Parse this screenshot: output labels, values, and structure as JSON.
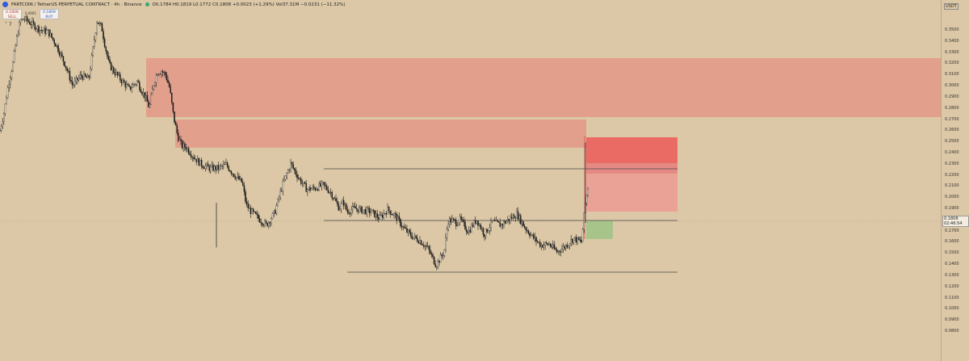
{
  "header": {
    "symbol": "FARTCOIN / TetherUS PERPETUAL CONTRACT · 4h · Binance",
    "ohlc": "O0.1784 H0.1819 L0.1772 C0.1808 +0.0023 (+1.29%) Vol37.31M −0.0231 (−11.32%)"
  },
  "trade_panel": {
    "sell_price": "0.1808",
    "sell_label": "SELL",
    "spread": "0.0001",
    "buy_price": "0.1809",
    "buy_label": "BUY",
    "collapse": "˅ 7"
  },
  "axis": {
    "unit": "USDT",
    "ticks": [
      "0.3500",
      "0.3400",
      "0.3300",
      "0.3200",
      "0.3100",
      "0.3000",
      "0.2900",
      "0.2800",
      "0.2700",
      "0.2600",
      "0.2500",
      "0.2400",
      "0.2300",
      "0.2200",
      "0.2100",
      "0.2000",
      "0.1900",
      "0.1700",
      "0.1600",
      "0.1500",
      "0.1400",
      "0.1300",
      "0.1200",
      "0.1100",
      "0.1000",
      "0.0900",
      "0.0800"
    ],
    "current_price": "0.1808",
    "countdown": "02:46:54"
  },
  "chart_data": {
    "type": "line",
    "ylim": [
      0.0735,
      0.3635
    ],
    "x": [
      0,
      5,
      10,
      16,
      20,
      25,
      30,
      40,
      50,
      60,
      65,
      70,
      80,
      90,
      100,
      110,
      120,
      126,
      130,
      135,
      140,
      150,
      160,
      170,
      175,
      180,
      185,
      190,
      195,
      200,
      205,
      210,
      215,
      220,
      225,
      230,
      240,
      250,
      260,
      270,
      280,
      290,
      300,
      305,
      310,
      320,
      330,
      340,
      350,
      360,
      370,
      380,
      390,
      400,
      410,
      420,
      425,
      430,
      435,
      440,
      450,
      460,
      470,
      480,
      490,
      500,
      510,
      520,
      530,
      540,
      550,
      555,
      560,
      565,
      570,
      580,
      590,
      600,
      610,
      620,
      630,
      640,
      650,
      660,
      670,
      680,
      690,
      700,
      710,
      720,
      725,
      730,
      735,
      740,
      750,
      760,
      780,
      800,
      820,
      840,
      850,
      860,
      870,
      880,
      900,
      920,
      940,
      960,
      980,
      1000,
      1020,
      1040,
      1060,
      1080,
      1100,
      1120,
      1140,
      1160
    ],
    "y": [
      0.26,
      0.276,
      0.3,
      0.32,
      0.34,
      0.358,
      0.36,
      0.355,
      0.35,
      0.348,
      0.342,
      0.336,
      0.32,
      0.3,
      0.309,
      0.306,
      0.358,
      0.352,
      0.336,
      0.319,
      0.314,
      0.305,
      0.297,
      0.304,
      0.296,
      0.29,
      0.28,
      0.301,
      0.312,
      0.313,
      0.31,
      0.298,
      0.272,
      0.255,
      0.246,
      0.245,
      0.236,
      0.229,
      0.226,
      0.226,
      0.229,
      0.22,
      0.213,
      0.193,
      0.188,
      0.181,
      0.175,
      0.186,
      0.211,
      0.23,
      0.217,
      0.207,
      0.208,
      0.211,
      0.204,
      0.19,
      0.196,
      0.187,
      0.189,
      0.19,
      0.188,
      0.187,
      0.181,
      0.189,
      0.183,
      0.172,
      0.165,
      0.161,
      0.154,
      0.139,
      0.151,
      0.179,
      0.179,
      0.177,
      0.18,
      0.169,
      0.18,
      0.167,
      0.178,
      0.175,
      0.18,
      0.185,
      0.173,
      0.164,
      0.157,
      0.158,
      0.151,
      0.156,
      0.163,
      0.16,
      0.196,
      0.217,
      0.225,
      0.213,
      0.203,
      0.191,
      0.187,
      0.178,
      0.171,
      0.176,
      0.164,
      0.186,
      0.179,
      0.17,
      0.165,
      0.172,
      0.165,
      0.17,
      0.175,
      0.182,
      0.178,
      0.182,
      0.183,
      0.168,
      0.186,
      0.193,
      0.204,
      0.18
    ]
  },
  "colors": {
    "background": "#dcc8a6",
    "zone_fill": "#e2a08c",
    "stop_fill": "#ea6a64",
    "target_fill": "#eaa196",
    "entry_fill": "#a7c48b",
    "candle": "#1a1a1a",
    "level_line": "#4a4a4a"
  }
}
